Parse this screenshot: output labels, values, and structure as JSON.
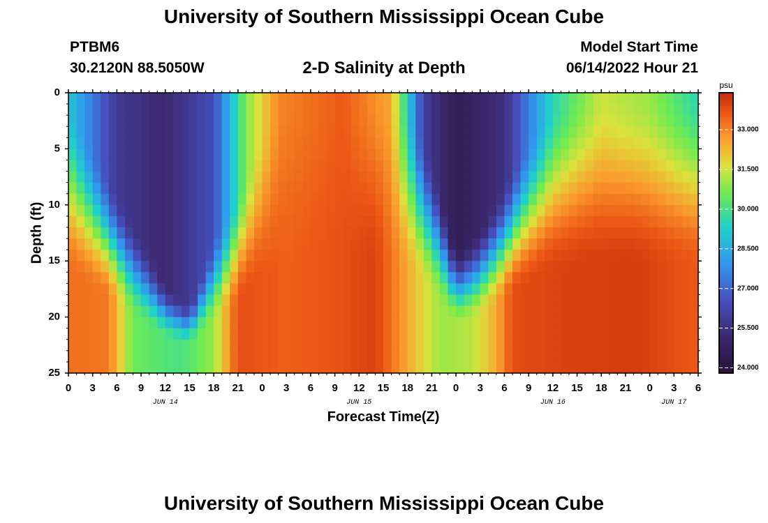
{
  "header": {
    "title_top": "University of Southern Mississippi Ocean Cube",
    "title_bottom": "University of Southern Mississippi Ocean Cube",
    "station": "PTBM6",
    "coordinates": "30.2120N  88.5050W",
    "subtitle": "2-D Salinity at Depth",
    "model_start_label": "Model Start Time",
    "model_start_value": "06/14/2022 Hour 21"
  },
  "chart_data": {
    "type": "heatmap",
    "title": "2-D Salinity at Depth",
    "xlabel": "Forecast Time(Z)",
    "ylabel": "Depth (ft)",
    "x_range_hours": [
      0,
      78
    ],
    "x_ticks": [
      {
        "h": 0,
        "label": "0"
      },
      {
        "h": 3,
        "label": "3"
      },
      {
        "h": 6,
        "label": "6"
      },
      {
        "h": 9,
        "label": "9"
      },
      {
        "h": 12,
        "label": "12"
      },
      {
        "h": 15,
        "label": "15"
      },
      {
        "h": 18,
        "label": "18"
      },
      {
        "h": 21,
        "label": "21"
      },
      {
        "h": 24,
        "label": "0"
      },
      {
        "h": 27,
        "label": "3"
      },
      {
        "h": 30,
        "label": "6"
      },
      {
        "h": 33,
        "label": "9"
      },
      {
        "h": 36,
        "label": "12"
      },
      {
        "h": 39,
        "label": "15"
      },
      {
        "h": 42,
        "label": "18"
      },
      {
        "h": 45,
        "label": "21"
      },
      {
        "h": 48,
        "label": "0"
      },
      {
        "h": 51,
        "label": "3"
      },
      {
        "h": 54,
        "label": "6"
      },
      {
        "h": 57,
        "label": "9"
      },
      {
        "h": 60,
        "label": "12"
      },
      {
        "h": 63,
        "label": "15"
      },
      {
        "h": 66,
        "label": "18"
      },
      {
        "h": 69,
        "label": "21"
      },
      {
        "h": 72,
        "label": "0"
      },
      {
        "h": 75,
        "label": "3"
      },
      {
        "h": 78,
        "label": "6"
      }
    ],
    "date_labels": [
      {
        "h": 12,
        "label": "JUN 14"
      },
      {
        "h": 36,
        "label": "JUN 15"
      },
      {
        "h": 60,
        "label": "JUN 16"
      },
      {
        "h": 75,
        "label": "JUN 17"
      }
    ],
    "y_range_ft": [
      0,
      25
    ],
    "y_ticks": [
      0,
      5,
      10,
      15,
      20,
      25
    ],
    "colorbar": {
      "unit": "psu",
      "range": [
        23.8,
        34.4
      ],
      "tick_values": [
        24.0,
        25.5,
        27.0,
        28.5,
        30.0,
        31.5,
        33.0
      ],
      "tick_labels": [
        "24.000",
        "25.500",
        "27.000",
        "28.500",
        "30.000",
        "31.500",
        "33.000"
      ]
    },
    "fresh_front_depth_ft": [
      {
        "h": 0,
        "d": 1
      },
      {
        "h": 3,
        "d": 5
      },
      {
        "h": 6,
        "d": 9
      },
      {
        "h": 9,
        "d": 13
      },
      {
        "h": 12,
        "d": 17
      },
      {
        "h": 15,
        "d": 19
      },
      {
        "h": 18,
        "d": 13
      },
      {
        "h": 21,
        "d": 9
      },
      {
        "h": 24,
        "d": 3
      },
      {
        "h": 27,
        "d": 0
      },
      {
        "h": 30,
        "d": 0
      },
      {
        "h": 33,
        "d": 0
      },
      {
        "h": 36,
        "d": 0
      },
      {
        "h": 39,
        "d": 0
      },
      {
        "h": 42,
        "d": 1
      },
      {
        "h": 45,
        "d": 6
      },
      {
        "h": 48,
        "d": 14
      },
      {
        "h": 51,
        "d": 12
      },
      {
        "h": 54,
        "d": 8
      },
      {
        "h": 57,
        "d": 4
      },
      {
        "h": 60,
        "d": 1
      },
      {
        "h": 63,
        "d": 0
      },
      {
        "h": 66,
        "d": 0
      },
      {
        "h": 69,
        "d": 0
      },
      {
        "h": 72,
        "d": 0
      },
      {
        "h": 75,
        "d": 0
      },
      {
        "h": 78,
        "d": 0
      }
    ],
    "fresh_core_salinity_psu": [
      {
        "h": 0,
        "v": 29.0
      },
      {
        "h": 6,
        "v": 25.8
      },
      {
        "h": 12,
        "v": 25.2
      },
      {
        "h": 18,
        "v": 26.5
      },
      {
        "h": 22,
        "v": 30.8
      },
      {
        "h": 26,
        "v": 33.0
      },
      {
        "h": 34,
        "v": 33.6
      },
      {
        "h": 40,
        "v": 32.5
      },
      {
        "h": 44,
        "v": 26.0
      },
      {
        "h": 48,
        "v": 24.5
      },
      {
        "h": 54,
        "v": 25.5
      },
      {
        "h": 60,
        "v": 29.5
      },
      {
        "h": 66,
        "v": 31.5
      },
      {
        "h": 72,
        "v": 31.0
      },
      {
        "h": 78,
        "v": 29.5
      }
    ],
    "bottom_salinity_psu": [
      {
        "h": 0,
        "v": 33.3
      },
      {
        "h": 5,
        "v": 33.2
      },
      {
        "h": 8,
        "v": 30.5
      },
      {
        "h": 14,
        "v": 30.0
      },
      {
        "h": 18,
        "v": 31.0
      },
      {
        "h": 21,
        "v": 33.8
      },
      {
        "h": 27,
        "v": 33.5
      },
      {
        "h": 33,
        "v": 33.7
      },
      {
        "h": 38,
        "v": 34.0
      },
      {
        "h": 42,
        "v": 32.5
      },
      {
        "h": 46,
        "v": 31.0
      },
      {
        "h": 50,
        "v": 31.3
      },
      {
        "h": 53,
        "v": 32.5
      },
      {
        "h": 55,
        "v": 33.8
      },
      {
        "h": 62,
        "v": 34.0
      },
      {
        "h": 70,
        "v": 34.1
      },
      {
        "h": 78,
        "v": 33.6
      }
    ]
  }
}
